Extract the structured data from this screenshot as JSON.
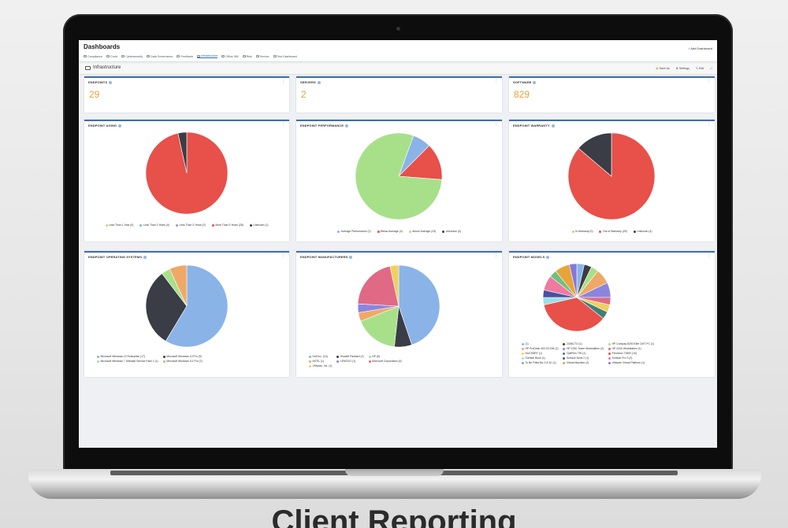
{
  "app": {
    "title": "Dashboards",
    "add_label": "Add Dashboard"
  },
  "tabs": [
    {
      "label": "Compliance",
      "icon": "shield-icon"
    },
    {
      "label": "Covid",
      "icon": "virus-icon"
    },
    {
      "label": "Cybersecurity",
      "icon": "lock-icon"
    },
    {
      "label": "Data Governance",
      "icon": "folder-icon"
    },
    {
      "label": "Feedback",
      "icon": "thumbs-up-icon"
    },
    {
      "label": "Infrastructure",
      "icon": "monitor-icon",
      "active": true
    },
    {
      "label": "Office 365",
      "icon": "office-icon"
    },
    {
      "label": "Risk",
      "icon": "warning-icon"
    },
    {
      "label": "Service",
      "icon": "gear-icon"
    },
    {
      "label": "Test Dashboard",
      "icon": "flask-icon"
    }
  ],
  "section": {
    "title": "Infrastructure",
    "actions": [
      "Save As",
      "Settings",
      "Edit"
    ]
  },
  "stats": [
    {
      "title": "ENDPOINTS",
      "value": "29"
    },
    {
      "title": "SERVERS",
      "value": "2"
    },
    {
      "title": "SOFTWARE",
      "value": "829"
    }
  ],
  "caption": "Client Reporting",
  "chart_data": [
    {
      "type": "pie",
      "title": "ENDPOINT AGING",
      "slices": [
        {
          "label": "Less Than 1 Year (0)",
          "value": 0,
          "color": "#a8e08a"
        },
        {
          "label": "Less Than 2 Years (0)",
          "value": 0,
          "color": "#7fb0e6"
        },
        {
          "label": "Less Than 3 Years (0)",
          "value": 0,
          "color": "#9b8fe0"
        },
        {
          "label": "More Than 3 Years (28)",
          "value": 28,
          "color": "#e8504a"
        },
        {
          "label": "Unknown (1)",
          "value": 1,
          "color": "#3a3d45"
        }
      ]
    },
    {
      "type": "pie",
      "title": "ENDPOINT PERFORMANCE",
      "slices": [
        {
          "label": "Average Performance (2)",
          "value": 2,
          "color": "#8ab3e8"
        },
        {
          "label": "Below Average (4)",
          "value": 4,
          "color": "#e8504a"
        },
        {
          "label": "Above Average (23)",
          "value": 23,
          "color": "#a8e08a"
        },
        {
          "label": "Unknown (0)",
          "value": 0,
          "color": "#3a3d45"
        }
      ]
    },
    {
      "type": "pie",
      "title": "ENDPOINT WARRANTY",
      "slices": [
        {
          "label": "In Warranty (0)",
          "value": 0,
          "color": "#a8e08a"
        },
        {
          "label": "Out of Warranty (25)",
          "value": 25,
          "color": "#e8504a"
        },
        {
          "label": "Unknown (4)",
          "value": 4,
          "color": "#3a3d45"
        }
      ]
    },
    {
      "type": "pie",
      "title": "ENDPOINT OPERATING SYSTEMS",
      "slices": [
        {
          "label": "Microsoft Windows 10 Enterprise (17)",
          "value": 17,
          "color": "#8ab3e8"
        },
        {
          "label": "Microsoft Windows 10 Pro (9)",
          "value": 9,
          "color": "#3a3d45"
        },
        {
          "label": "Microsoft Windows 7 Ultimate Service Pack 1 (1)",
          "value": 1,
          "color": "#a8e08a"
        },
        {
          "label": "Microsoft Windows 8.1 Pro (2)",
          "value": 2,
          "color": "#f0a868"
        }
      ]
    },
    {
      "type": "pie",
      "title": "ENDPOINT MANUFACTURERS",
      "slices": [
        {
          "label": "Dell Inc. (13)",
          "value": 13,
          "color": "#8ab3e8"
        },
        {
          "label": "Hewlett Packard (2)",
          "value": 2,
          "color": "#3a3d45"
        },
        {
          "label": "HP (5)",
          "value": 5,
          "color": "#a8e08a"
        },
        {
          "label": "INTEL (1)",
          "value": 1,
          "color": "#f0a868"
        },
        {
          "label": "LENOVO (1)",
          "value": 1,
          "color": "#8b85e0"
        },
        {
          "label": "Microsoft Corporation (6)",
          "value": 6,
          "color": "#e06a85"
        },
        {
          "label": "VMware, Inc. (1)",
          "value": 1,
          "color": "#f0d060"
        }
      ]
    },
    {
      "type": "pie",
      "title": "ENDPOINT MODELS",
      "slices": [
        {
          "label": "(1)",
          "value": 1,
          "color": "#8ab3e8"
        },
        {
          "label": "2306CTO (1)",
          "value": 1,
          "color": "#3a3d45"
        },
        {
          "label": "HP Compaq 8200 Elite CMT PC (1)",
          "value": 1,
          "color": "#a8e08a"
        },
        {
          "label": "HP ProDesk 400 G3 DM (2)",
          "value": 2,
          "color": "#f0a868"
        },
        {
          "label": "HP Z240 Tower Workstation (2)",
          "value": 2,
          "color": "#8b85e0"
        },
        {
          "label": "HP Z440 Workstation (1)",
          "value": 1,
          "color": "#e06a85"
        },
        {
          "label": "NUC5i3RY (1)",
          "value": 1,
          "color": "#f0d060"
        },
        {
          "label": "OptiPlex 790 (1)",
          "value": 1,
          "color": "#3e7f7a"
        },
        {
          "label": "Precision T3600 (10)",
          "value": 10,
          "color": "#e8504a"
        },
        {
          "label": "Surface Book (1)",
          "value": 1,
          "color": "#9be0e6"
        },
        {
          "label": "Surface Book 2 (1)",
          "value": 1,
          "color": "#4a4fa0"
        },
        {
          "label": "Surface Pro 3 (2)",
          "value": 2,
          "color": "#f07aa0"
        },
        {
          "label": "To Be Filled By O.E.M. (1)",
          "value": 1,
          "color": "#6fc080"
        },
        {
          "label": "Virtual Machine (2)",
          "value": 2,
          "color": "#e8a33b"
        },
        {
          "label": "VMware Virtual Platform (1)",
          "value": 1,
          "color": "#8578d8"
        }
      ]
    }
  ]
}
